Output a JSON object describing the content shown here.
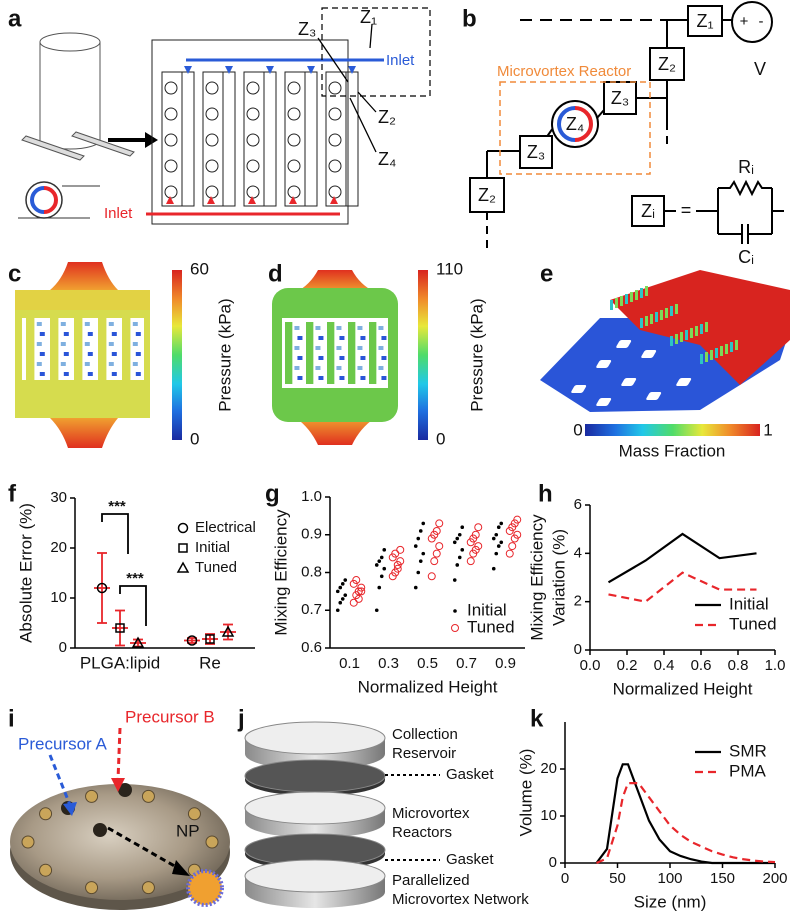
{
  "panel_labels": [
    "a",
    "b",
    "c",
    "d",
    "e",
    "f",
    "g",
    "h",
    "i",
    "j",
    "k"
  ],
  "panel_a": {
    "z_labels": [
      "Z₃",
      "Z₁",
      "Z₂",
      "Z₄"
    ],
    "top_inlet": "Inlet",
    "bottom_inlet": "Inlet"
  },
  "panel_b": {
    "impedances": [
      "Z₁",
      "Z₂",
      "Z₃",
      "Z₄",
      "Z₃",
      "Z₂"
    ],
    "source_plus": "+",
    "source_minus": "-",
    "source": "V",
    "reactor_label": "Microvortex Reactor",
    "equivalent": {
      "impedance": "Zᵢ",
      "equals": "=",
      "resistor": "Rᵢ",
      "capacitor": "Cᵢ"
    }
  },
  "panel_c": {
    "colorbar_max": 60,
    "colorbar_min": 0,
    "colorbar_label": "Pressure (kPa)"
  },
  "panel_d": {
    "colorbar_max": 110,
    "colorbar_min": 0,
    "colorbar_label": "Pressure (kPa)"
  },
  "panel_e": {
    "colorbar_min": 0,
    "colorbar_max": 1,
    "colorbar_label": "Mass Fraction"
  },
  "panel_i": {
    "precursor_a": "Precursor A",
    "precursor_b": "Precursor B",
    "product": "NP"
  },
  "panel_j": {
    "layers": [
      [
        "Collection",
        "Reservoir"
      ],
      [
        "Gasket"
      ],
      [
        "Microvortex",
        "Reactors"
      ],
      [
        "Gasket"
      ],
      [
        "Parallelized",
        "Microvortex Network"
      ]
    ]
  },
  "chart_data": [
    {
      "type": "errorbar",
      "ylabel": "Absolute Error  (%)",
      "categories": [
        "PLGA:lipid",
        "Re"
      ],
      "series": [
        {
          "name": "Electrical",
          "marker": "circle",
          "values": [
            12,
            1.5
          ],
          "errors": [
            7,
            0.5
          ]
        },
        {
          "name": "Initial",
          "marker": "square",
          "values": [
            4,
            1.8
          ],
          "errors": [
            3.5,
            1
          ]
        },
        {
          "name": "Tuned",
          "marker": "triangle",
          "values": [
            1,
            3.2
          ],
          "errors": [
            0.7,
            1.5
          ]
        }
      ],
      "annotations": [
        "***",
        "***"
      ],
      "error_color": "#e8262b",
      "legend": "upper right",
      "ylim": [
        0,
        30
      ],
      "yticks": [
        0,
        10,
        20,
        30
      ]
    },
    {
      "type": "strip",
      "xlabel": "Normalized Height",
      "ylabel": "Mixing Efficiency",
      "categories": [
        "0.1",
        "0.3",
        "0.5",
        "0.7",
        "0.9"
      ],
      "series": [
        {
          "name": "Initial",
          "color": "#000000",
          "marker": "dot",
          "values": [
            [
              0.7,
              0.72,
              0.73,
              0.74,
              0.75,
              0.76,
              0.77,
              0.78
            ],
            [
              0.7,
              0.76,
              0.79,
              0.81,
              0.82,
              0.83,
              0.84,
              0.86
            ],
            [
              0.76,
              0.8,
              0.83,
              0.85,
              0.87,
              0.89,
              0.91,
              0.93
            ],
            [
              0.78,
              0.82,
              0.84,
              0.86,
              0.88,
              0.89,
              0.9,
              0.92
            ],
            [
              0.81,
              0.85,
              0.87,
              0.88,
              0.89,
              0.9,
              0.92,
              0.93
            ]
          ]
        },
        {
          "name": "Tuned",
          "color": "#e8262b",
          "marker": "ring",
          "values": [
            [
              0.72,
              0.74,
              0.75,
              0.76,
              0.77,
              0.78,
              0.73,
              0.75
            ],
            [
              0.79,
              0.8,
              0.82,
              0.83,
              0.84,
              0.85,
              0.81,
              0.86
            ],
            [
              0.79,
              0.83,
              0.85,
              0.87,
              0.89,
              0.9,
              0.91,
              0.93
            ],
            [
              0.83,
              0.85,
              0.86,
              0.87,
              0.88,
              0.89,
              0.9,
              0.92
            ],
            [
              0.85,
              0.87,
              0.89,
              0.9,
              0.91,
              0.92,
              0.93,
              0.94
            ]
          ]
        }
      ],
      "legend": "lower right",
      "ylim": [
        0.6,
        1.0
      ],
      "yticks": [
        0.6,
        0.7,
        0.8,
        0.9,
        {
          "value": 1.0,
          "label": "1.0"
        }
      ]
    },
    {
      "type": "line",
      "xlabel": "Normalized Height",
      "ylabel": [
        "Mixing Efficiency",
        "Variation (%)"
      ],
      "x": [
        0.1,
        0.3,
        0.5,
        0.7,
        0.9
      ],
      "series": [
        {
          "name": "Initial",
          "color": "#000000",
          "dashed": false,
          "values": [
            2.8,
            3.7,
            4.8,
            3.8,
            4.0
          ]
        },
        {
          "name": "Tuned",
          "color": "#e8262b",
          "dashed": true,
          "values": [
            2.3,
            2.0,
            3.2,
            2.5,
            2.5
          ]
        }
      ],
      "legend": "lower right",
      "xlim": [
        0,
        1.0
      ],
      "xticks": [
        {
          "value": 0,
          "label": "0.0"
        },
        0.2,
        0.4,
        0.6,
        0.8,
        {
          "value": 1.0,
          "label": "1.0"
        }
      ],
      "ylim": [
        0,
        6
      ],
      "yticks": [
        0,
        2,
        4,
        6
      ]
    },
    {
      "type": "line",
      "xlabel": "Size (nm)",
      "ylabel": "Volume  (%)",
      "x": [
        30,
        40,
        50,
        55,
        60,
        70,
        80,
        90,
        100,
        110,
        120,
        130,
        140,
        150,
        160,
        170,
        180,
        190,
        200
      ],
      "series": [
        {
          "name": "SMR",
          "color": "#000000",
          "dashed": false,
          "values": [
            0,
            3,
            18,
            21,
            21,
            15,
            9,
            5,
            2.5,
            1.5,
            0.8,
            0.3,
            0,
            0,
            0,
            0,
            0,
            0,
            0
          ]
        },
        {
          "name": "PMA",
          "color": "#e8262b",
          "dashed": true,
          "values": [
            0,
            1,
            8,
            14,
            17,
            17,
            14,
            11,
            8,
            6,
            4.5,
            3.5,
            2.5,
            1.8,
            1.2,
            0.8,
            0.5,
            0.3,
            0.2
          ]
        }
      ],
      "legend": "upper right",
      "xlim": [
        0,
        200
      ],
      "xticks": [
        0,
        50,
        100,
        150,
        200
      ],
      "ylim": [
        0,
        30
      ],
      "yticks": [
        0,
        10,
        20
      ]
    }
  ]
}
